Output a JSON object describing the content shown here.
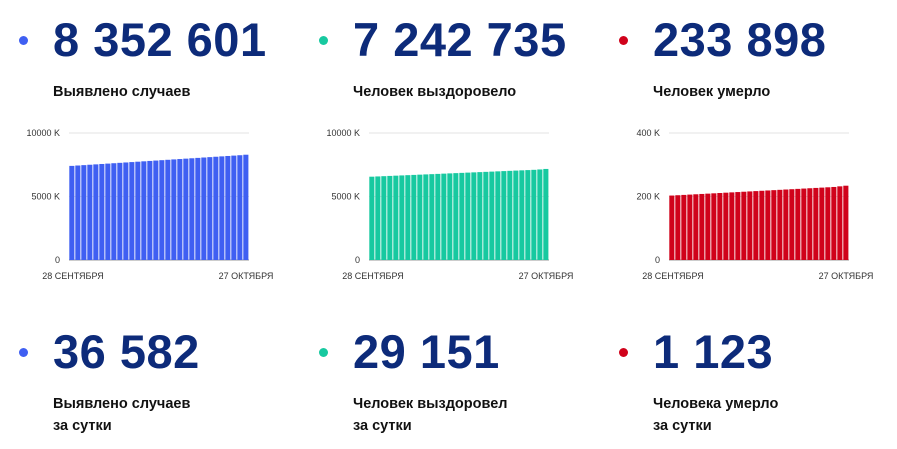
{
  "stats_top": [
    {
      "value": "8 352 601",
      "label": "Выявлено случаев",
      "color": "#3f5ff2"
    },
    {
      "value": "7 242 735",
      "label": "Человек выздоровело",
      "color": "#17c9a0"
    },
    {
      "value": "233 898",
      "label": "Человек умерло",
      "color": "#d0021b"
    }
  ],
  "stats_bottom": [
    {
      "value": "36 582",
      "label_line1": "Выявлено случаев",
      "label_line2": "за сутки",
      "color": "#3f5ff2"
    },
    {
      "value": "29 151",
      "label_line1": "Человек выздоровел",
      "label_line2": "за сутки",
      "color": "#17c9a0"
    },
    {
      "value": "1 123",
      "label_line1": "Человека умерло",
      "label_line2": "за сутки",
      "color": "#d0021b"
    }
  ],
  "chart_data": [
    {
      "type": "bar",
      "series": [
        {
          "values": [
            7410,
            7440,
            7470,
            7500,
            7530,
            7560,
            7590,
            7620,
            7650,
            7680,
            7710,
            7740,
            7770,
            7800,
            7830,
            7860,
            7890,
            7920,
            7950,
            7980,
            8010,
            8040,
            8070,
            8100,
            8130,
            8160,
            8190,
            8220,
            8250,
            8290
          ],
          "color": "#3f5ff2"
        }
      ],
      "x_labels": [
        "28 СЕНТЯБРЯ",
        "27 ОКТЯБРЯ"
      ],
      "y_ticks": [
        {
          "value": 0,
          "label": "0"
        },
        {
          "value": 5000,
          "label": "5000 K"
        },
        {
          "value": 10000,
          "label": "10000 K"
        }
      ],
      "ylim": [
        0,
        10000
      ],
      "grid": true
    },
    {
      "type": "bar",
      "series": [
        {
          "values": [
            6560,
            6580,
            6600,
            6620,
            6640,
            6660,
            6680,
            6700,
            6720,
            6740,
            6760,
            6780,
            6800,
            6820,
            6840,
            6860,
            6880,
            6900,
            6920,
            6940,
            6960,
            6980,
            7000,
            7020,
            7040,
            7060,
            7080,
            7100,
            7130,
            7170
          ],
          "color": "#17c9a0"
        }
      ],
      "x_labels": [
        "28 СЕНТЯБРЯ",
        "27 ОКТЯБРЯ"
      ],
      "y_ticks": [
        {
          "value": 0,
          "label": "0"
        },
        {
          "value": 5000,
          "label": "5000 K"
        },
        {
          "value": 10000,
          "label": "10000 K"
        }
      ],
      "ylim": [
        0,
        10000
      ],
      "grid": true
    },
    {
      "type": "bar",
      "series": [
        {
          "values": [
            203,
            204,
            205,
            206,
            207,
            208,
            209,
            210,
            211,
            212,
            213,
            214,
            215,
            216,
            217,
            218,
            219,
            220,
            221,
            222,
            223,
            224,
            225,
            226,
            227,
            228,
            229,
            230,
            232,
            234
          ],
          "color": "#d0021b"
        }
      ],
      "x_labels": [
        "28 СЕНТЯБРЯ",
        "27 ОКТЯБРЯ"
      ],
      "y_ticks": [
        {
          "value": 0,
          "label": "0"
        },
        {
          "value": 200,
          "label": "200 K"
        },
        {
          "value": 400,
          "label": "400 K"
        }
      ],
      "ylim": [
        0,
        400
      ],
      "grid": true
    }
  ]
}
